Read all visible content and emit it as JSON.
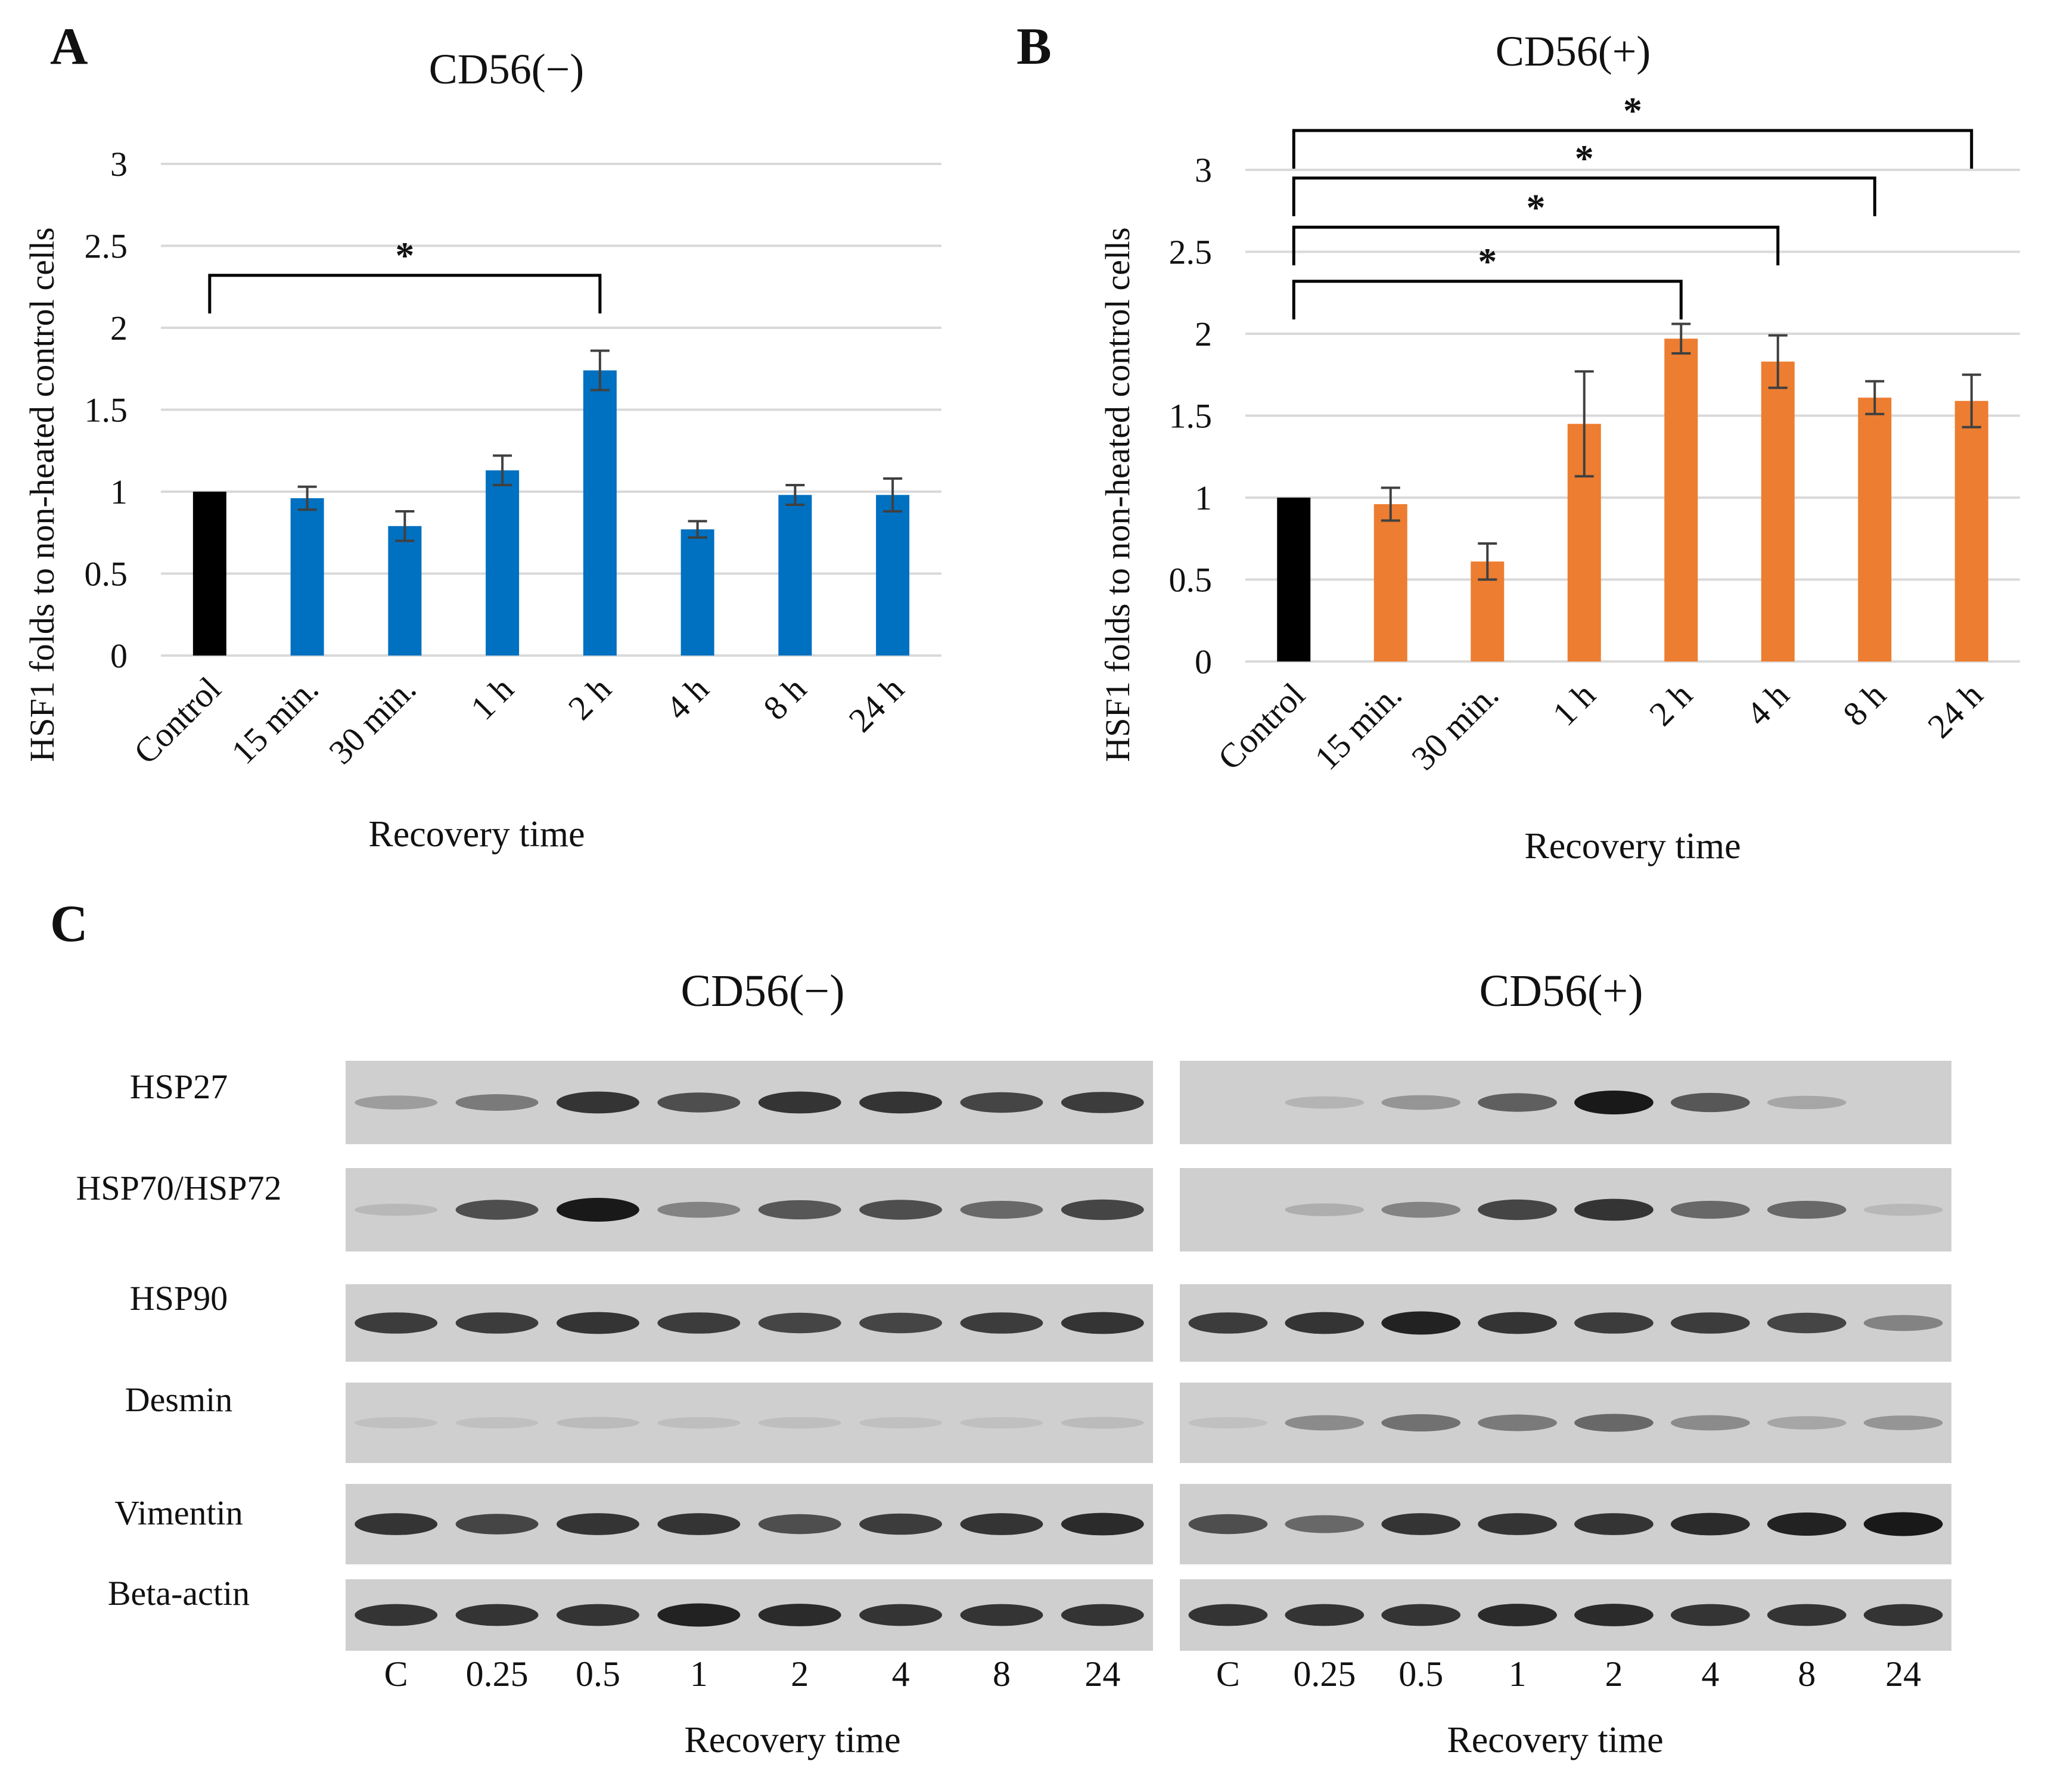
{
  "panel_labels": {
    "a": "A",
    "b": "B",
    "c": "C"
  },
  "chart_data": [
    {
      "type": "bar",
      "title": "CD56(−)",
      "xlabel": "Recovery time",
      "ylabel": "HSF1  folds to non-heated control cells",
      "categories": [
        "Control",
        "15 min.",
        "30 min.",
        "1 h",
        "2 h",
        "4 h",
        "8 h",
        "24 h"
      ],
      "values": [
        1.0,
        0.96,
        0.79,
        1.13,
        1.74,
        0.77,
        0.98,
        0.98
      ],
      "errors": [
        0.0,
        0.07,
        0.09,
        0.09,
        0.12,
        0.05,
        0.06,
        0.1
      ],
      "bar_colors": [
        "#000000",
        "#0070c0",
        "#0070c0",
        "#0070c0",
        "#0070c0",
        "#0070c0",
        "#0070c0",
        "#0070c0"
      ],
      "ylim": [
        0,
        3
      ],
      "yticks": [
        "0",
        "0.5",
        "1",
        "1.5",
        "2",
        "2.5",
        "3"
      ],
      "grid": true,
      "significance": [
        {
          "from": "Control",
          "to": "2 h",
          "label": "*",
          "level": 2.32
        }
      ]
    },
    {
      "type": "bar",
      "title": "CD56(+)",
      "xlabel": "Recovery time",
      "ylabel": "HSF1  folds to non-heated control cells",
      "categories": [
        "Control",
        "15 min.",
        "30 min.",
        "1 h",
        "2 h",
        "4 h",
        "8 h",
        "24 h"
      ],
      "values": [
        1.0,
        0.96,
        0.61,
        1.45,
        1.97,
        1.83,
        1.61,
        1.59
      ],
      "errors": [
        0.0,
        0.1,
        0.11,
        0.32,
        0.09,
        0.16,
        0.1,
        0.16
      ],
      "bar_colors": [
        "#000000",
        "#ed7d31",
        "#ed7d31",
        "#ed7d31",
        "#ed7d31",
        "#ed7d31",
        "#ed7d31",
        "#ed7d31"
      ],
      "ylim": [
        0,
        3
      ],
      "yticks": [
        "0",
        "0.5",
        "1",
        "1.5",
        "2",
        "2.5",
        "3"
      ],
      "grid": true,
      "significance": [
        {
          "from": "Control",
          "to": "2 h",
          "label": "*",
          "level": 2.32
        },
        {
          "from": "Control",
          "to": "4 h",
          "label": "*",
          "level": 2.65
        },
        {
          "from": "Control",
          "to": "8 h",
          "label": "*",
          "level": 2.95
        },
        {
          "from": "Control",
          "to": "24 h",
          "label": "*",
          "level": 3.24
        }
      ]
    }
  ],
  "western_blot": {
    "titles": {
      "neg": "CD56(−)",
      "pos": "CD56(+)"
    },
    "rows": [
      "HSP27",
      "HSP70/HSP72",
      "HSP90",
      "Desmin",
      "Vimentin",
      "Beta-actin"
    ],
    "lanes": [
      "C",
      "0.25",
      "0.5",
      "1",
      "2",
      "4",
      "8",
      "24"
    ],
    "xlabel": "Recovery time",
    "band_intensity_neg": [
      [
        0.25,
        0.45,
        0.85,
        0.7,
        0.85,
        0.85,
        0.75,
        0.8
      ],
      [
        0.1,
        0.7,
        1.0,
        0.4,
        0.65,
        0.7,
        0.55,
        0.75
      ],
      [
        0.8,
        0.8,
        0.85,
        0.8,
        0.75,
        0.75,
        0.8,
        0.85
      ],
      [
        0.05,
        0.05,
        0.08,
        0.06,
        0.06,
        0.05,
        0.05,
        0.08
      ],
      [
        0.85,
        0.75,
        0.85,
        0.85,
        0.7,
        0.8,
        0.85,
        0.9
      ],
      [
        0.85,
        0.85,
        0.85,
        0.95,
        0.9,
        0.85,
        0.85,
        0.85
      ]
    ],
    "band_intensity_pos": [
      [
        0.0,
        0.12,
        0.3,
        0.6,
        1.0,
        0.65,
        0.2,
        0.0
      ],
      [
        0.0,
        0.15,
        0.4,
        0.75,
        0.85,
        0.55,
        0.55,
        0.1
      ],
      [
        0.8,
        0.85,
        0.95,
        0.85,
        0.8,
        0.8,
        0.75,
        0.4
      ],
      [
        0.05,
        0.35,
        0.5,
        0.45,
        0.55,
        0.35,
        0.2,
        0.3
      ],
      [
        0.7,
        0.55,
        0.85,
        0.85,
        0.85,
        0.9,
        0.95,
        1.0
      ],
      [
        0.85,
        0.85,
        0.85,
        0.9,
        0.9,
        0.85,
        0.85,
        0.85
      ]
    ]
  }
}
